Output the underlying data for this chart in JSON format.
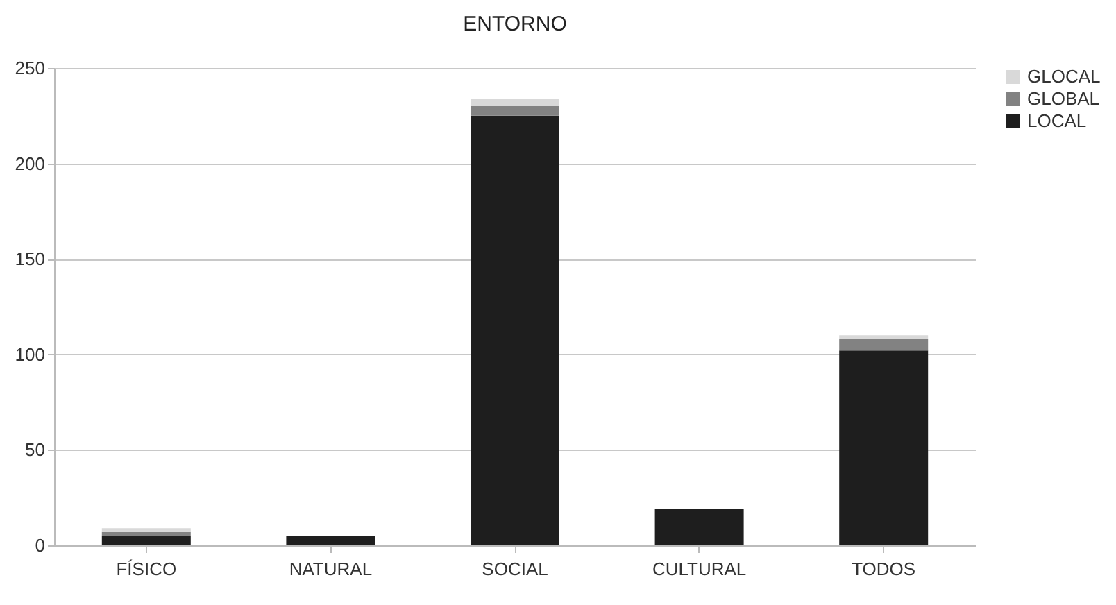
{
  "chart_data": {
    "type": "bar",
    "title": "ENTORNO",
    "categories": [
      "FÍSICO",
      "NATURAL",
      "SOCIAL",
      "CULTURAL",
      "TODOS"
    ],
    "stacked": true,
    "series": [
      {
        "name": "LOCAL",
        "color": "#1e1e1e",
        "values": [
          5,
          5,
          225,
          19,
          102
        ]
      },
      {
        "name": "GLOBAL",
        "color": "#828282",
        "values": [
          2,
          0,
          5,
          0,
          6
        ]
      },
      {
        "name": "GLOCAL",
        "color": "#d9d9d9",
        "values": [
          2,
          0,
          4,
          0,
          2
        ]
      }
    ],
    "ylim": [
      0,
      250
    ],
    "yticks": [
      0,
      50,
      100,
      150,
      200,
      250
    ],
    "grid": "y",
    "legend": "right"
  }
}
